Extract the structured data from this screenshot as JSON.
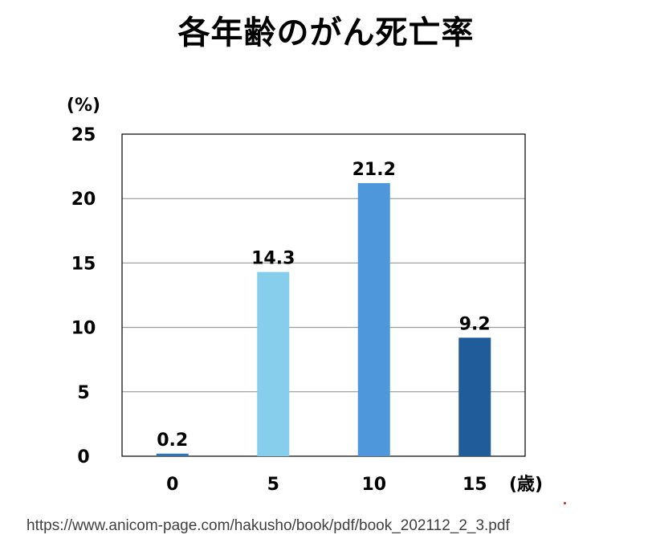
{
  "chart_data": {
    "type": "bar",
    "title": "各年齢のがん死亡率",
    "ylabel": "(%)",
    "xlabel": "(歳)",
    "categories": [
      "0",
      "5",
      "10",
      "15"
    ],
    "values": [
      0.2,
      14.3,
      21.2,
      9.2
    ],
    "value_labels": [
      "0.2",
      "14.3",
      "21.2",
      "9.2"
    ],
    "bar_colors": [
      "#2E75B6",
      "#86CEEB",
      "#4F97DB",
      "#1F5C99"
    ],
    "ylim": [
      0,
      25
    ],
    "yticks": [
      0,
      5,
      10,
      15,
      20,
      25
    ],
    "grid": true,
    "legend": "none"
  },
  "source": "https://www.anicom-page.com/hakusho/book/pdf/book_202112_2_3.pdf"
}
